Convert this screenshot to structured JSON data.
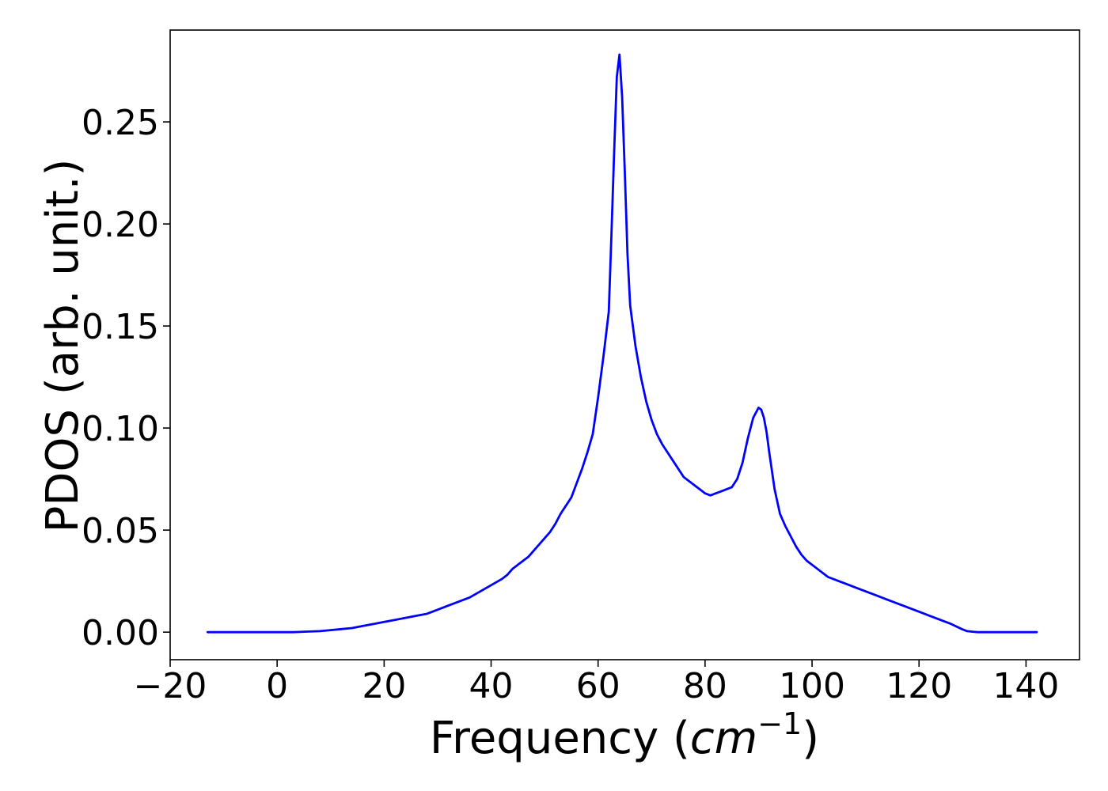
{
  "chart_data": {
    "type": "line",
    "title": "",
    "xlabel": {
      "prefix": "Frequency (",
      "italic": "cm",
      "superscript": "−1",
      "suffix": ")"
    },
    "ylabel": "PDOS (arb. unit.)",
    "xlim": [
      -20,
      150
    ],
    "ylim": [
      -0.0135,
      0.295
    ],
    "xticks": [
      -20,
      0,
      20,
      40,
      60,
      80,
      100,
      120,
      140
    ],
    "xtick_labels": [
      "−20",
      "0",
      "20",
      "40",
      "60",
      "80",
      "100",
      "120",
      "140"
    ],
    "yticks": [
      0.0,
      0.05,
      0.1,
      0.15,
      0.2,
      0.25
    ],
    "ytick_labels": [
      "0.00",
      "0.05",
      "0.10",
      "0.15",
      "0.20",
      "0.25"
    ],
    "grid": false,
    "legend": false,
    "series": [
      {
        "color": "#0000ff",
        "x": [
          -13,
          0,
          3,
          8,
          10,
          12,
          14,
          16,
          18,
          20,
          22,
          24,
          26,
          28,
          30,
          32,
          34,
          36,
          38,
          40,
          42,
          43,
          44,
          45,
          46,
          47,
          48,
          49,
          50,
          51,
          52,
          53,
          54,
          55,
          56,
          57,
          58,
          59,
          60,
          61,
          62,
          62.5,
          63,
          63.5,
          64,
          64.5,
          65,
          65.5,
          66,
          67,
          68,
          69,
          70,
          71,
          72,
          73,
          74,
          75,
          76,
          77,
          78,
          79,
          80,
          81,
          82,
          83,
          84,
          85,
          86,
          87,
          88,
          89,
          90,
          90.5,
          91,
          91.5,
          92,
          93,
          94,
          95,
          96,
          97,
          98,
          99,
          100,
          101,
          102,
          103,
          104,
          105,
          106,
          107,
          108,
          110,
          112,
          114,
          116,
          118,
          120,
          122,
          124,
          126,
          128,
          129,
          130,
          131,
          132,
          135,
          140,
          142
        ],
        "y": [
          0.0,
          0.0,
          0.0,
          0.0005,
          0.001,
          0.0015,
          0.002,
          0.003,
          0.004,
          0.005,
          0.006,
          0.007,
          0.008,
          0.009,
          0.011,
          0.013,
          0.015,
          0.017,
          0.02,
          0.023,
          0.026,
          0.028,
          0.031,
          0.033,
          0.035,
          0.037,
          0.04,
          0.043,
          0.046,
          0.049,
          0.053,
          0.058,
          0.062,
          0.066,
          0.073,
          0.08,
          0.088,
          0.097,
          0.115,
          0.135,
          0.157,
          0.195,
          0.235,
          0.272,
          0.283,
          0.262,
          0.225,
          0.185,
          0.16,
          0.14,
          0.125,
          0.113,
          0.104,
          0.097,
          0.092,
          0.088,
          0.084,
          0.08,
          0.076,
          0.074,
          0.072,
          0.07,
          0.068,
          0.067,
          0.068,
          0.069,
          0.07,
          0.071,
          0.075,
          0.083,
          0.095,
          0.105,
          0.11,
          0.109,
          0.105,
          0.098,
          0.088,
          0.07,
          0.058,
          0.052,
          0.047,
          0.042,
          0.038,
          0.035,
          0.033,
          0.031,
          0.029,
          0.027,
          0.026,
          0.025,
          0.024,
          0.023,
          0.022,
          0.02,
          0.018,
          0.016,
          0.014,
          0.012,
          0.01,
          0.008,
          0.006,
          0.004,
          0.0015,
          0.0005,
          0.0002,
          0.0,
          0.0,
          0.0,
          0.0,
          0.0
        ]
      }
    ]
  }
}
